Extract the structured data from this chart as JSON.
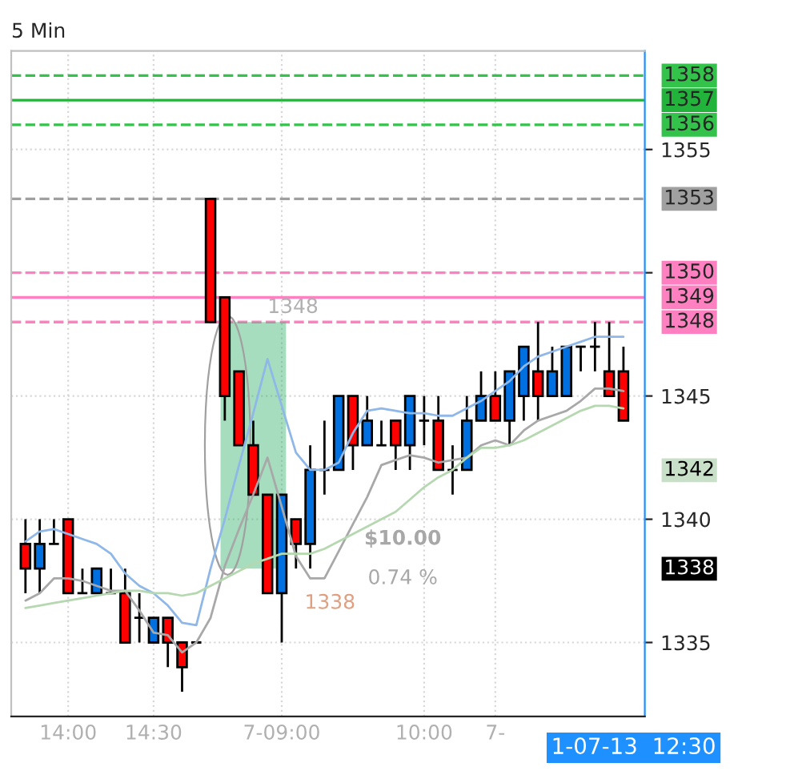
{
  "chart_data": {
    "type": "candlestick",
    "title": "5 Min",
    "categories": [
      null,
      null,
      null,
      "14:00",
      null,
      null,
      null,
      null,
      null,
      "14:30",
      null,
      null,
      null,
      null,
      null,
      null,
      null,
      null,
      "7-09:00",
      null,
      null,
      null,
      null,
      null,
      null,
      null,
      null,
      null,
      "10:00",
      null,
      null,
      null,
      null,
      "7-",
      null,
      null,
      null,
      null,
      null,
      null,
      null,
      null,
      null
    ],
    "ohlc": [
      [
        1339,
        1340,
        1337,
        1338
      ],
      [
        1338,
        1340,
        1337,
        1339
      ],
      [
        1339,
        1340,
        1339,
        1339
      ],
      [
        1340,
        1340,
        1337,
        1337
      ],
      [
        1337,
        1338,
        1337,
        1337
      ],
      [
        1337,
        1338,
        1337,
        1338
      ],
      [
        1337,
        1338,
        1337,
        1337
      ],
      [
        1337,
        1338,
        1335,
        1335
      ],
      [
        1336,
        1337,
        1335,
        1336
      ],
      [
        1335,
        1336,
        1335,
        1336
      ],
      [
        1336,
        1336,
        1334,
        1335
      ],
      [
        1335,
        1335,
        1333,
        1334
      ],
      [
        1335,
        1335,
        1335,
        1335
      ],
      [
        1353,
        1353,
        1348,
        1348
      ],
      [
        1349,
        1349,
        1344,
        1345
      ],
      [
        1346,
        1346,
        1343,
        1343
      ],
      [
        1343,
        1344,
        1341,
        1341
      ],
      [
        1341,
        1341,
        1337,
        1337
      ],
      [
        1337,
        1341,
        1335,
        1341
      ],
      [
        1340,
        1340,
        1338,
        1339
      ],
      [
        1339,
        1343,
        1338,
        1342
      ],
      [
        1342,
        1344,
        1341,
        1342
      ],
      [
        1342,
        1345,
        1342,
        1345
      ],
      [
        1345,
        1345,
        1342,
        1343
      ],
      [
        1343,
        1345,
        1343,
        1344
      ],
      [
        1343,
        1344,
        1343,
        1343
      ],
      [
        1344,
        1344,
        1342,
        1343
      ],
      [
        1343,
        1345,
        1342,
        1345
      ],
      [
        1344,
        1345,
        1343,
        1344
      ],
      [
        1344,
        1345,
        1342,
        1342
      ],
      [
        1342,
        1343,
        1341,
        1342
      ],
      [
        1342,
        1345,
        1342,
        1344
      ],
      [
        1344,
        1346,
        1344,
        1345
      ],
      [
        1345,
        1346,
        1344,
        1344
      ],
      [
        1344,
        1346,
        1343,
        1346
      ],
      [
        1345,
        1347,
        1344,
        1347
      ],
      [
        1346,
        1348,
        1344,
        1345
      ],
      [
        1345,
        1347,
        1345,
        1346
      ],
      [
        1345,
        1347,
        1345,
        1347
      ],
      [
        1347,
        1347,
        1346,
        1347
      ],
      [
        1347,
        1348,
        1346,
        1347
      ],
      [
        1346,
        1348,
        1345,
        1345
      ],
      [
        1346,
        1347,
        1344,
        1344
      ]
    ],
    "series": [
      {
        "type": "line",
        "color": "#8fb8e8",
        "values": [
          1339.1,
          1339.5,
          1339.6,
          1339.4,
          1339.2,
          1339.0,
          1338.6,
          1337.8,
          1337.3,
          1337.0,
          1336.5,
          1335.8,
          1335.7,
          1338,
          1340,
          1342.2,
          1344.3,
          1346.5,
          1344.6,
          1342.7,
          1342,
          1342,
          1342.3,
          1343.5,
          1344.4,
          1344.5,
          1344.4,
          1344.3,
          1344.3,
          1344.2,
          1344.2,
          1344.5,
          1344.8,
          1345.2,
          1345.6,
          1346.2,
          1346.6,
          1346.8,
          1347,
          1347.2,
          1347.4,
          1347.4,
          1347.4
        ]
      },
      {
        "type": "line",
        "color": "#a8a8a8",
        "values": [
          1336.7,
          1337,
          1337.6,
          1337.6,
          1337.5,
          1337.3,
          1337.1,
          1337.1,
          1336.3,
          1335.4,
          1335.3,
          1334.6,
          1335,
          1336,
          1338.1,
          1339.6,
          1341,
          1342.5,
          1340.5,
          1338.5,
          1337.6,
          1337.6,
          1338.7,
          1339.8,
          1340.9,
          1342.2,
          1342.4,
          1342.6,
          1342.5,
          1342.3,
          1342.4,
          1342.5,
          1343,
          1343.2,
          1343,
          1343.6,
          1344,
          1344.2,
          1344.4,
          1344.8,
          1345.3,
          1345.3,
          1345.2
        ]
      },
      {
        "type": "line",
        "color": "#b5d8b0",
        "values": [
          1336.4,
          1336.5,
          1336.6,
          1336.7,
          1336.8,
          1336.9,
          1337,
          1337.1,
          1337.1,
          1337,
          1337,
          1336.9,
          1337,
          1337.3,
          1337.6,
          1337.9,
          1338.2,
          1338.4,
          1338.6,
          1338.6,
          1338.6,
          1338.8,
          1339.1,
          1339.4,
          1339.7,
          1340,
          1340.3,
          1340.8,
          1341.3,
          1341.7,
          1342,
          1342.5,
          1342.9,
          1342.9,
          1343,
          1343.2,
          1343.5,
          1343.8,
          1344.1,
          1344.4,
          1344.6,
          1344.6,
          1344.5
        ]
      }
    ],
    "ylim": [
      1332,
      1359
    ],
    "yticks": [
      1335,
      1340,
      1345,
      {
        "value": 1350,
        "label": null
      },
      1355
    ],
    "ref_lines": [
      {
        "axis": "y",
        "value": 1358,
        "label": "1358",
        "color": "#33c24a",
        "line_style": "dashed"
      },
      {
        "axis": "y",
        "value": 1357,
        "label": "1357",
        "color": "#22b33a",
        "line_style": "solid"
      },
      {
        "axis": "y",
        "value": 1356,
        "label": "1356",
        "color": "#33c24a",
        "line_style": "dashed"
      },
      {
        "axis": "y",
        "value": 1353,
        "label": "1353",
        "color": "#a0a0a0",
        "line_style": "dashed"
      },
      {
        "axis": "y",
        "value": 1350,
        "label": "1350",
        "color": "#ff80c0",
        "line_style": "dashed"
      },
      {
        "axis": "y",
        "value": 1349,
        "label": "1349",
        "color": "#ff80c0",
        "line_style": "solid"
      },
      {
        "axis": "y",
        "value": 1348,
        "label": "1348",
        "color": "#ff80c0",
        "line_style": "dashed"
      }
    ],
    "annotations": [
      "1348",
      "$10.00",
      "0.74 %",
      "1338",
      "1-07-13  12:30",
      "1342",
      "1338"
    ],
    "grid": true
  }
}
